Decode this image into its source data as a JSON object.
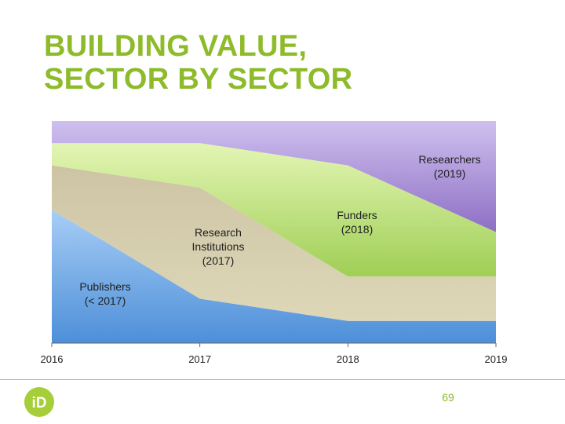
{
  "slide": {
    "title_line1": "BUILDING VALUE,",
    "title_line2": "SECTOR BY SECTOR",
    "page_number": "69"
  },
  "colors": {
    "title": "#8dbb2a",
    "publishers": "#5f9ee0",
    "institutions": "#d5cfb0",
    "funders": "#b8db78",
    "researchers": "#b79bd9",
    "footer_line": "#a6ce39",
    "logo": "#a6ce39"
  },
  "logo": {
    "icon": "orcid-logo-icon",
    "text": "iD"
  },
  "chart_data": {
    "type": "area",
    "stacked": true,
    "title": "",
    "xlabel": "",
    "ylabel": "",
    "x": [
      2016,
      2017,
      2018,
      2019
    ],
    "x_tick_labels": [
      "2016",
      "2017",
      "2018",
      "2019"
    ],
    "ylim": [
      0,
      100
    ],
    "grid": false,
    "legend": "none",
    "series": [
      {
        "name": "Publishers (< 2017)",
        "values": [
          60,
          20,
          10,
          10
        ]
      },
      {
        "name": "Research Institutions (2017)",
        "values": [
          20,
          50,
          20,
          20
        ]
      },
      {
        "name": "Funders (2018)",
        "values": [
          10,
          20,
          50,
          20
        ]
      },
      {
        "name": "Researchers (2019)",
        "values": [
          10,
          10,
          20,
          50
        ]
      }
    ],
    "annotations": [
      {
        "series": "Publishers (< 2017)",
        "lines": [
          "Publishers",
          "(< 2017)"
        ]
      },
      {
        "series": "Research Institutions (2017)",
        "lines": [
          "Research",
          "Institutions",
          "(2017)"
        ]
      },
      {
        "series": "Funders (2018)",
        "lines": [
          "Funders",
          "(2018)"
        ]
      },
      {
        "series": "Researchers (2019)",
        "lines": [
          "Researchers",
          "(2019)"
        ]
      }
    ]
  }
}
